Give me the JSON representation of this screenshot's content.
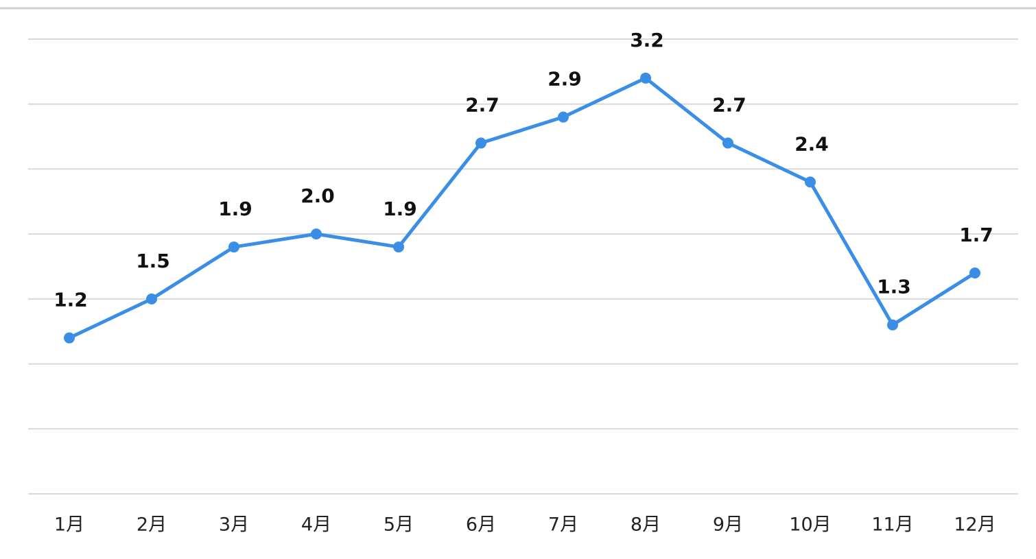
{
  "chart_data": {
    "type": "line",
    "categories": [
      "1月",
      "2月",
      "3月",
      "4月",
      "5月",
      "6月",
      "7月",
      "8月",
      "9月",
      "10月",
      "11月",
      "12月"
    ],
    "values": [
      1.2,
      1.5,
      1.9,
      2.0,
      1.9,
      2.7,
      2.9,
      3.2,
      2.7,
      2.4,
      1.3,
      1.7
    ],
    "value_labels": [
      "1.2",
      "1.5",
      "1.9",
      "2.0",
      "1.9",
      "2.7",
      "2.9",
      "3.2",
      "2.7",
      "2.4",
      "1.3",
      "1.7"
    ],
    "color": "#3a8ee6",
    "ylim": [
      0,
      3.5
    ],
    "yticks": [
      0,
      0.5,
      1,
      1.5,
      2,
      2.5,
      3,
      3.5
    ],
    "grid": true
  }
}
